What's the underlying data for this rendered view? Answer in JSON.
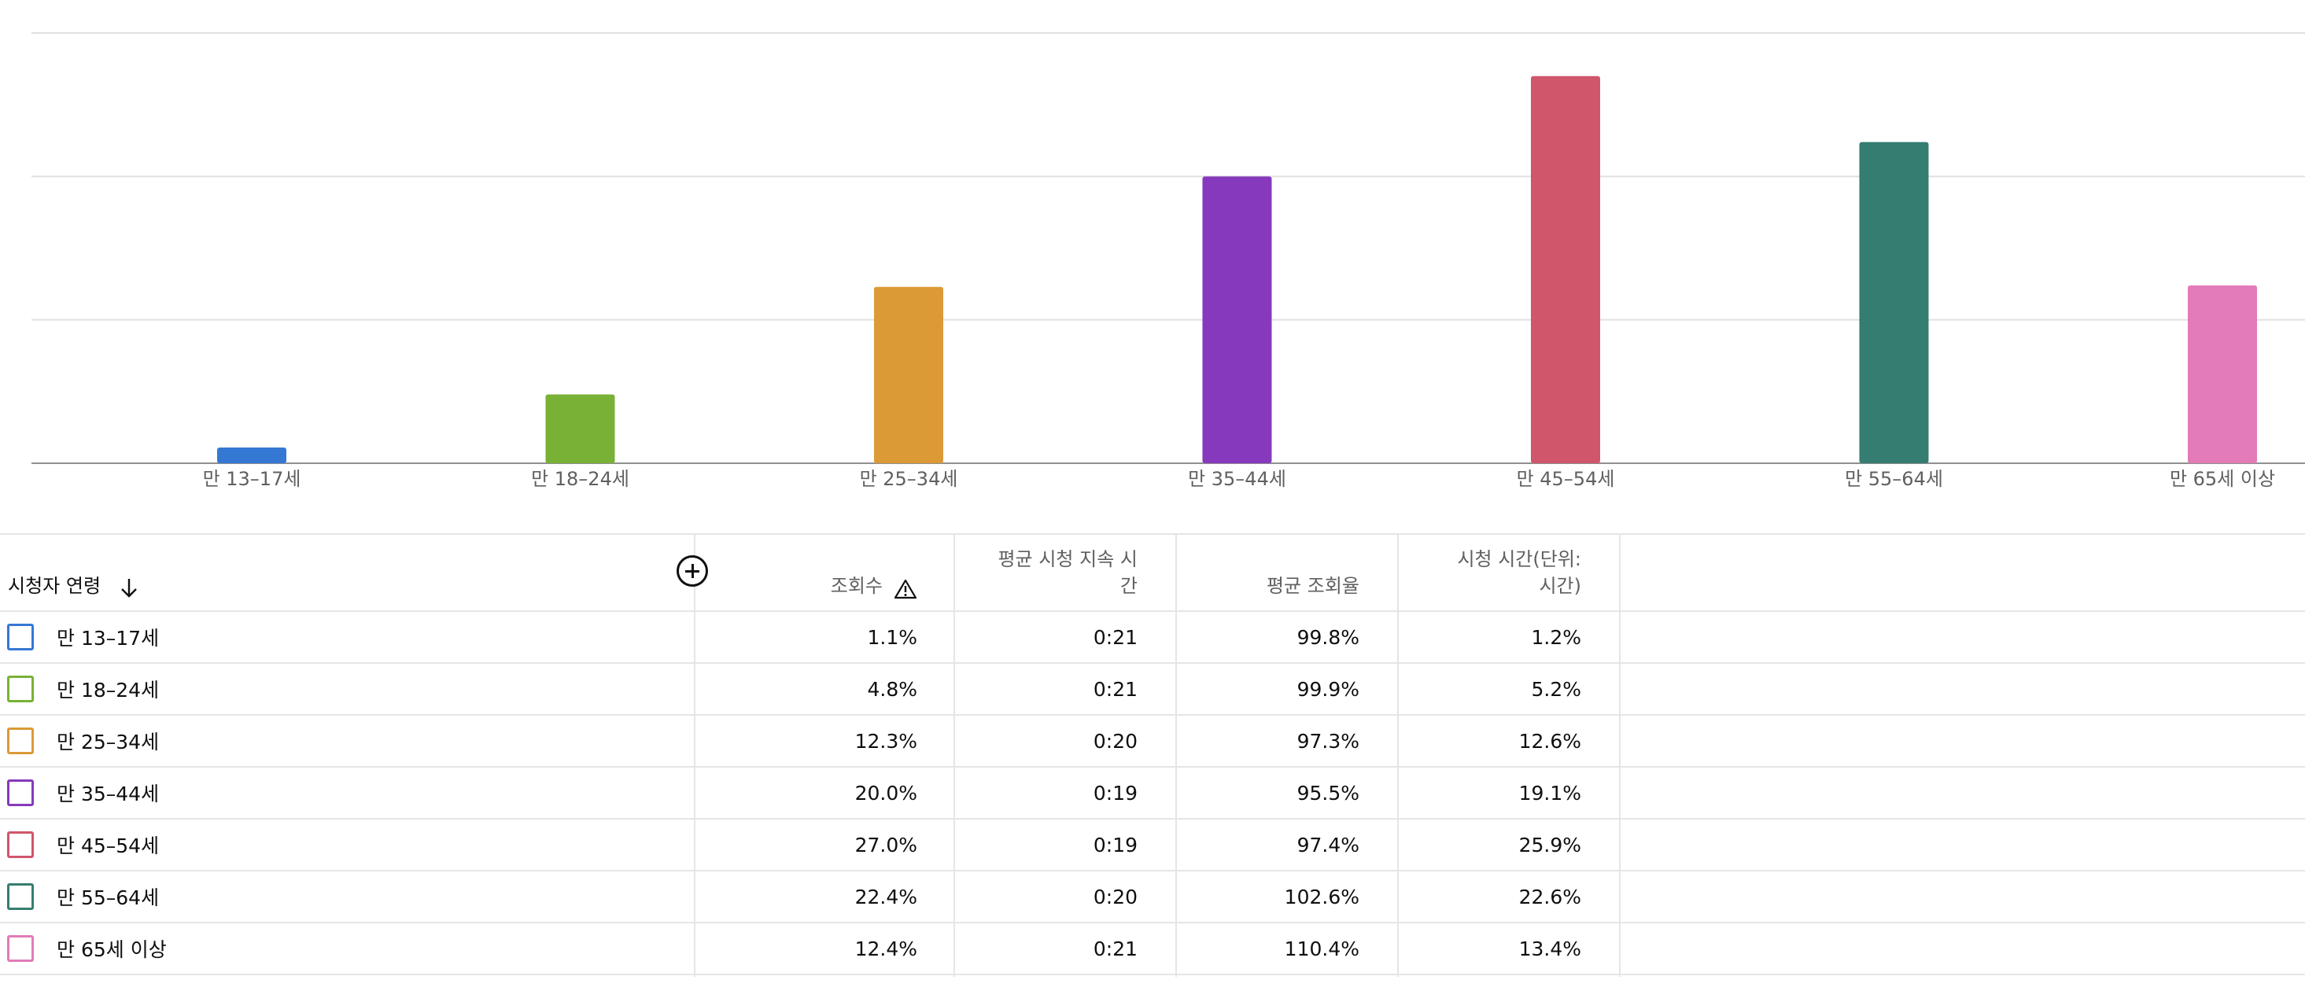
{
  "chart_data": {
    "type": "bar",
    "categories": [
      "만 13–17세",
      "만 18–24세",
      "만 25–34세",
      "만 35–44세",
      "만 45–54세",
      "만 55–64세",
      "만 65세 이상"
    ],
    "values": [
      1.1,
      4.8,
      12.3,
      20.0,
      27.0,
      22.4,
      12.4
    ],
    "colors": [
      "#3578d4",
      "#78b135",
      "#db9a36",
      "#8639bc",
      "#cf566b",
      "#357d70",
      "#e27bb8"
    ],
    "ylim": [
      0,
      30
    ],
    "grid": true
  },
  "table": {
    "headers": {
      "age": "시청자 연령",
      "views": "조회수",
      "avg_duration": "평균 시청 지속 시\n간",
      "avg_percent": "평균 조회율",
      "watch_time": "시청 시간(단위:\n시간)"
    },
    "sort_icon": "arrow-down-icon",
    "warning_icon": "warning-triangle-icon",
    "add_column_icon": "add-circle-icon",
    "rows": [
      {
        "label": "만 13–17세",
        "color": "#3578d4",
        "views": "1.1%",
        "avg_duration": "0:21",
        "avg_percent": "99.8%",
        "watch_time": "1.2%"
      },
      {
        "label": "만 18–24세",
        "color": "#78b135",
        "views": "4.8%",
        "avg_duration": "0:21",
        "avg_percent": "99.9%",
        "watch_time": "5.2%"
      },
      {
        "label": "만 25–34세",
        "color": "#db9a36",
        "views": "12.3%",
        "avg_duration": "0:20",
        "avg_percent": "97.3%",
        "watch_time": "12.6%"
      },
      {
        "label": "만 35–44세",
        "color": "#8639bc",
        "views": "20.0%",
        "avg_duration": "0:19",
        "avg_percent": "95.5%",
        "watch_time": "19.1%"
      },
      {
        "label": "만 45–54세",
        "color": "#cf566b",
        "views": "27.0%",
        "avg_duration": "0:19",
        "avg_percent": "97.4%",
        "watch_time": "25.9%"
      },
      {
        "label": "만 55–64세",
        "color": "#357d70",
        "views": "22.4%",
        "avg_duration": "0:20",
        "avg_percent": "102.6%",
        "watch_time": "22.6%"
      },
      {
        "label": "만 65세 이상",
        "color": "#e27bb8",
        "views": "12.4%",
        "avg_duration": "0:21",
        "avg_percent": "110.4%",
        "watch_time": "13.4%"
      }
    ]
  }
}
